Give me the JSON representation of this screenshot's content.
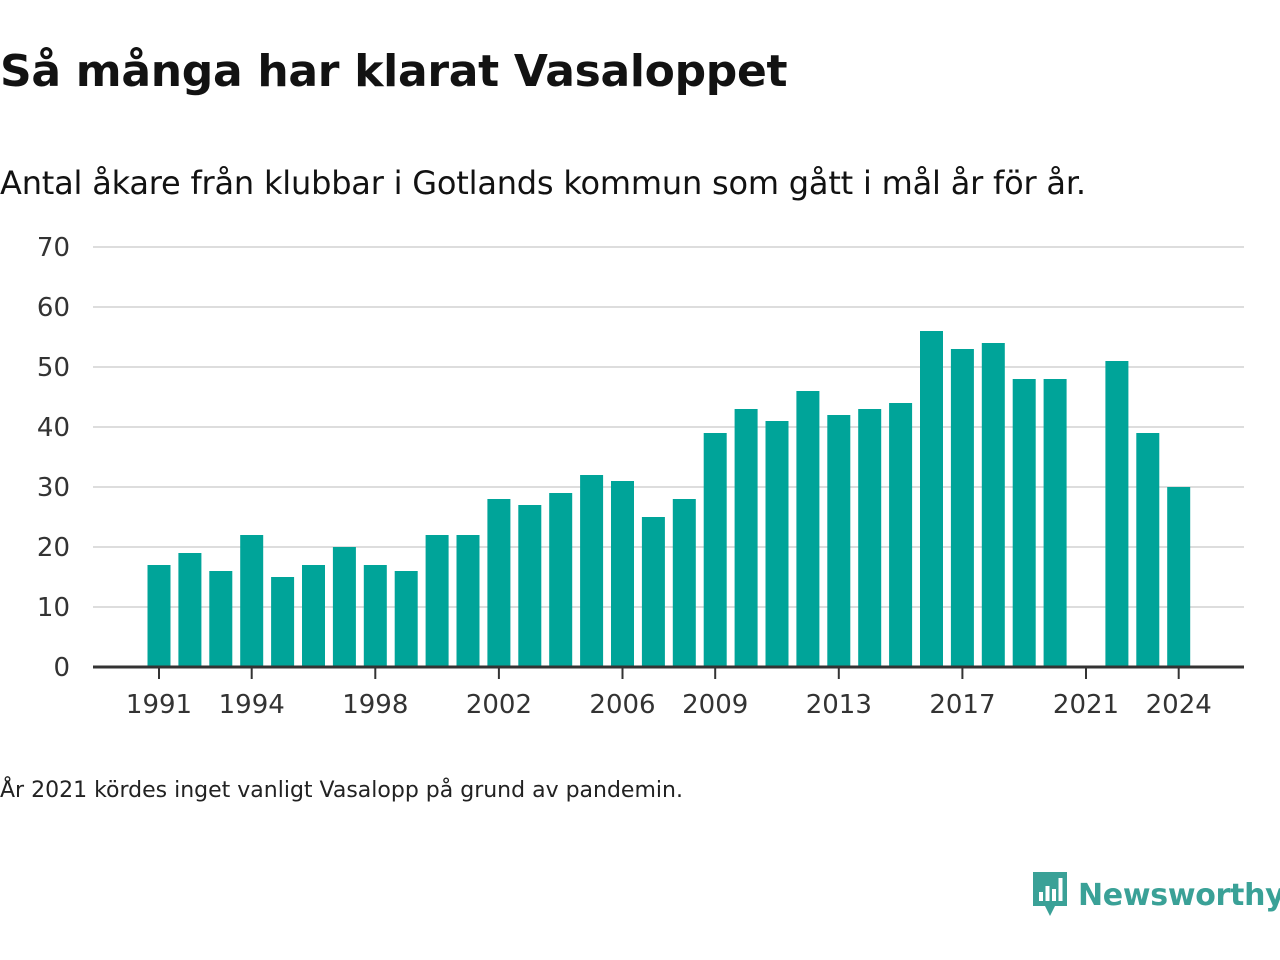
{
  "title": "Så många har klarat Vasaloppet",
  "subtitle": "Antal åkare från klubbar i Gotlands kommun som gått i mål år för år.",
  "footnote": "År 2021 kördes inget vanligt Vasalopp på grund av pandemin.",
  "brand": {
    "name": "Newsworthy",
    "icon": "newsworthy-logo-icon",
    "color": "#3aa197"
  },
  "colors": {
    "bar": "#00a499",
    "grid": "#dddddd",
    "axis": "#333333"
  },
  "chart_data": {
    "type": "bar",
    "title": "Så många har klarat Vasaloppet",
    "subtitle": "Antal åkare från klubbar i Gotlands kommun som gått i mål år för år.",
    "xlabel": "",
    "ylabel": "",
    "categories": [
      1991,
      1992,
      1993,
      1994,
      1995,
      1996,
      1997,
      1998,
      1999,
      2000,
      2001,
      2002,
      2003,
      2004,
      2005,
      2006,
      2007,
      2008,
      2009,
      2010,
      2011,
      2012,
      2013,
      2014,
      2015,
      2016,
      2017,
      2018,
      2019,
      2020,
      2021,
      2022,
      2023,
      2024
    ],
    "values": [
      17,
      19,
      16,
      22,
      15,
      17,
      20,
      17,
      16,
      22,
      22,
      28,
      27,
      29,
      32,
      31,
      25,
      28,
      39,
      43,
      41,
      46,
      42,
      43,
      44,
      56,
      53,
      54,
      48,
      48,
      null,
      51,
      39,
      30
    ],
    "ylim": [
      0,
      70
    ],
    "yticks": [
      0,
      10,
      20,
      30,
      40,
      50,
      60,
      70
    ],
    "xticks": [
      1991,
      1994,
      1998,
      2002,
      2006,
      2009,
      2013,
      2017,
      2021,
      2024
    ],
    "grid": true,
    "legend": "none"
  }
}
